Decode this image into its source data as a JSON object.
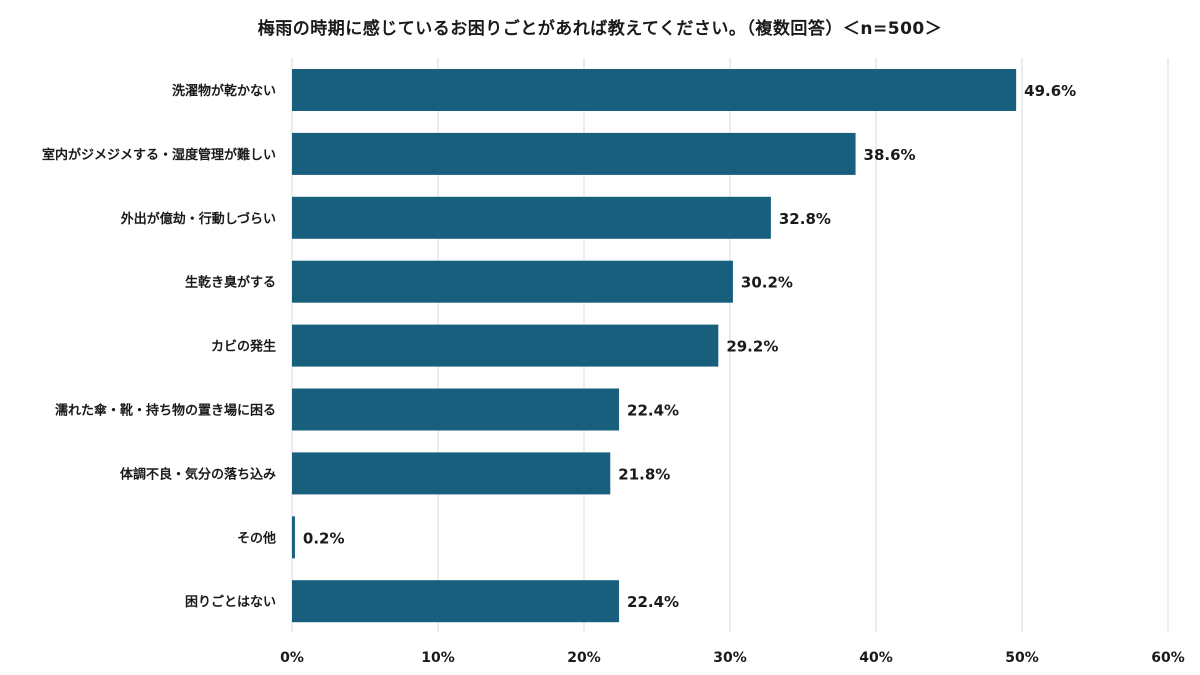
{
  "chart_data": {
    "type": "bar",
    "orientation": "horizontal",
    "title": "梅雨の時期に感じているお困りごとがあれば教えてください。（複数回答）＜n=500＞",
    "categories": [
      "洗濯物が乾かない",
      "室内がジメジメする・湿度管理が難しい",
      "外出が億劫・行動しづらい",
      "生乾き臭がする",
      "カビの発生",
      "濡れた傘・靴・持ち物の置き場に困る",
      "体調不良・気分の落ち込み",
      "その他",
      "困りごとはない"
    ],
    "values": [
      49.6,
      38.6,
      32.8,
      30.2,
      29.2,
      22.4,
      21.8,
      0.2,
      22.4
    ],
    "value_labels": [
      "49.6%",
      "38.6%",
      "32.8%",
      "30.2%",
      "29.2%",
      "22.4%",
      "21.8%",
      "0.2%",
      "22.4%"
    ],
    "xlim": [
      0,
      60
    ],
    "x_ticks": [
      0,
      10,
      20,
      30,
      40,
      50,
      60
    ],
    "x_tick_labels": [
      "0%",
      "10%",
      "20%",
      "30%",
      "40%",
      "50%",
      "60%"
    ],
    "grid": true,
    "bar_color": "#175f7d"
  }
}
